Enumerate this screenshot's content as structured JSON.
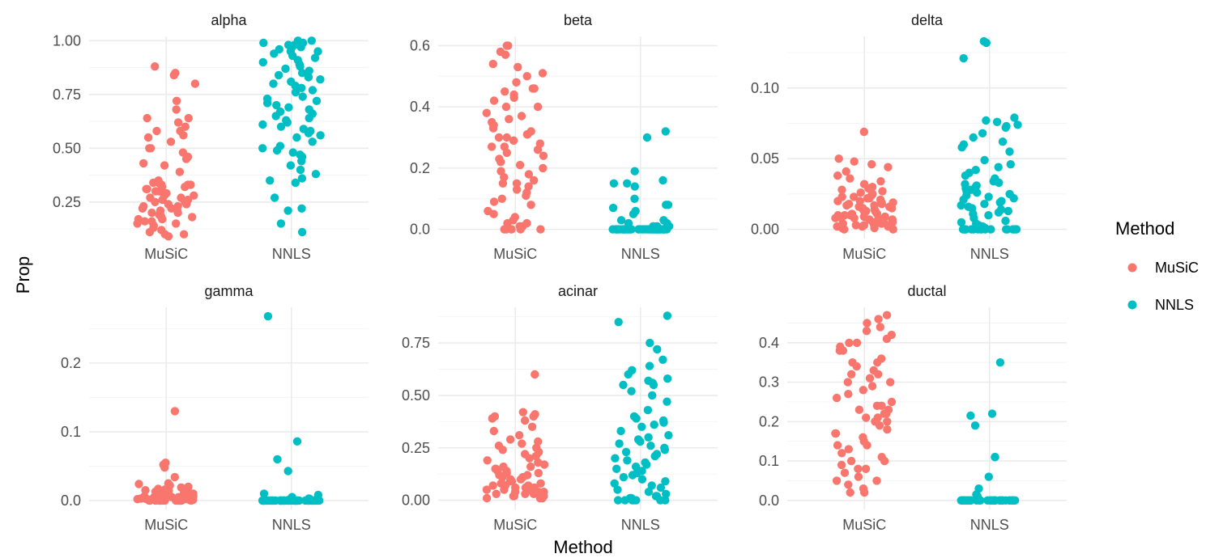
{
  "chart_data": {
    "type": "scatter",
    "style": "faceted jitter strip plot",
    "xlabel": "Method",
    "ylabel": "Prop",
    "categories": [
      "MuSiC",
      "NNLS"
    ],
    "legend": {
      "title": "Method",
      "placement": "right",
      "entries": [
        {
          "name": "MuSiC",
          "color": "#F8766D"
        },
        {
          "name": "NNLS",
          "color": "#00BFC4"
        }
      ]
    },
    "grid": true,
    "facets": [
      {
        "title": "alpha",
        "ylim": [
          0.08,
          1.02
        ],
        "yticks": [
          0.25,
          0.5,
          0.75,
          1.0
        ],
        "ytick_labels": [
          "0.25",
          "0.50",
          "0.75",
          "1.00"
        ],
        "series": [
          {
            "name": "MuSiC",
            "values": [
              0.85,
              0.88,
              0.84,
              0.8,
              0.72,
              0.68,
              0.64,
              0.64,
              0.62,
              0.6,
              0.58,
              0.58,
              0.56,
              0.55,
              0.53,
              0.5,
              0.5,
              0.48,
              0.46,
              0.45,
              0.43,
              0.42,
              0.39,
              0.35,
              0.34,
              0.34,
              0.33,
              0.33,
              0.33,
              0.32,
              0.32,
              0.31,
              0.31,
              0.3,
              0.3,
              0.29,
              0.28,
              0.28,
              0.27,
              0.27,
              0.26,
              0.26,
              0.25,
              0.25,
              0.24,
              0.24,
              0.23,
              0.23,
              0.22,
              0.22,
              0.21,
              0.21,
              0.2,
              0.2,
              0.19,
              0.19,
              0.18,
              0.18,
              0.17,
              0.17,
              0.16,
              0.16,
              0.15,
              0.15,
              0.14,
              0.13,
              0.12,
              0.11,
              0.1,
              0.1,
              0.09
            ]
          },
          {
            "name": "NNLS",
            "values": [
              1.0,
              1.0,
              0.99,
              0.99,
              0.98,
              0.98,
              0.97,
              0.97,
              0.96,
              0.95,
              0.95,
              0.94,
              0.93,
              0.92,
              0.91,
              0.9,
              0.89,
              0.88,
              0.87,
              0.86,
              0.85,
              0.84,
              0.83,
              0.82,
              0.81,
              0.8,
              0.79,
              0.78,
              0.77,
              0.76,
              0.74,
              0.73,
              0.72,
              0.71,
              0.7,
              0.69,
              0.68,
              0.67,
              0.66,
              0.65,
              0.64,
              0.63,
              0.62,
              0.61,
              0.6,
              0.59,
              0.58,
              0.57,
              0.56,
              0.55,
              0.53,
              0.51,
              0.5,
              0.49,
              0.48,
              0.47,
              0.46,
              0.44,
              0.42,
              0.4,
              0.38,
              0.36,
              0.35,
              0.34,
              0.27,
              0.22,
              0.21,
              0.15,
              0.11
            ]
          }
        ]
      },
      {
        "title": "beta",
        "ylim": [
          -0.03,
          0.63
        ],
        "yticks": [
          0.0,
          0.2,
          0.4,
          0.6
        ],
        "ytick_labels": [
          "0.0",
          "0.2",
          "0.4",
          "0.6"
        ],
        "series": [
          {
            "name": "MuSiC",
            "values": [
              0.6,
              0.6,
              0.58,
              0.57,
              0.54,
              0.53,
              0.51,
              0.5,
              0.48,
              0.46,
              0.46,
              0.45,
              0.44,
              0.43,
              0.42,
              0.4,
              0.4,
              0.38,
              0.37,
              0.36,
              0.35,
              0.34,
              0.34,
              0.33,
              0.32,
              0.31,
              0.31,
              0.3,
              0.3,
              0.29,
              0.28,
              0.27,
              0.27,
              0.26,
              0.25,
              0.24,
              0.23,
              0.22,
              0.21,
              0.2,
              0.19,
              0.18,
              0.17,
              0.16,
              0.15,
              0.15,
              0.14,
              0.13,
              0.12,
              0.11,
              0.1,
              0.09,
              0.08,
              0.06,
              0.05,
              0.04,
              0.03,
              0.02,
              0.02,
              0.01,
              0.01,
              0.0,
              0.0,
              0.0,
              0.0,
              0.0,
              0.0
            ]
          },
          {
            "name": "NNLS",
            "values": [
              0.32,
              0.3,
              0.19,
              0.16,
              0.15,
              0.15,
              0.14,
              0.1,
              0.08,
              0.08,
              0.07,
              0.06,
              0.05,
              0.03,
              0.03,
              0.02,
              0.02,
              0.01,
              0.01,
              0.01,
              0.0,
              0.0,
              0.0,
              0.0,
              0.0,
              0.0,
              0.0,
              0.0,
              0.0,
              0.0,
              0.0,
              0.0,
              0.0,
              0.0,
              0.0,
              0.0,
              0.0,
              0.0,
              0.0,
              0.0,
              0.0,
              0.0,
              0.0,
              0.0,
              0.0,
              0.0,
              0.0,
              0.0,
              0.0,
              0.0,
              0.0,
              0.0,
              0.0,
              0.0,
              0.0,
              0.0,
              0.0,
              0.0,
              0.0,
              0.0
            ]
          }
        ]
      },
      {
        "title": "delta",
        "ylim": [
          -0.0065,
          0.1365
        ],
        "yticks": [
          0.0,
          0.05,
          0.1
        ],
        "ytick_labels": [
          "0.00",
          "0.05",
          "0.10"
        ],
        "series": [
          {
            "name": "MuSiC",
            "values": [
              0.069,
              0.05,
              0.048,
              0.046,
              0.044,
              0.041,
              0.038,
              0.036,
              0.034,
              0.032,
              0.03,
              0.029,
              0.028,
              0.027,
              0.026,
              0.025,
              0.024,
              0.023,
              0.023,
              0.022,
              0.022,
              0.021,
              0.02,
              0.02,
              0.019,
              0.019,
              0.018,
              0.018,
              0.017,
              0.017,
              0.016,
              0.016,
              0.015,
              0.015,
              0.014,
              0.014,
              0.013,
              0.013,
              0.012,
              0.012,
              0.011,
              0.011,
              0.01,
              0.01,
              0.01,
              0.009,
              0.009,
              0.008,
              0.008,
              0.008,
              0.007,
              0.007,
              0.007,
              0.006,
              0.006,
              0.006,
              0.005,
              0.005,
              0.005,
              0.004,
              0.004,
              0.004,
              0.003,
              0.003,
              0.003,
              0.002,
              0.002,
              0.002,
              0.001,
              0.001,
              0.0,
              0.0
            ]
          },
          {
            "name": "NNLS",
            "values": [
              0.133,
              0.132,
              0.121,
              0.079,
              0.077,
              0.076,
              0.074,
              0.073,
              0.072,
              0.068,
              0.065,
              0.062,
              0.06,
              0.058,
              0.055,
              0.049,
              0.046,
              0.044,
              0.042,
              0.04,
              0.038,
              0.036,
              0.034,
              0.033,
              0.032,
              0.031,
              0.03,
              0.029,
              0.028,
              0.027,
              0.026,
              0.025,
              0.024,
              0.023,
              0.022,
              0.021,
              0.02,
              0.019,
              0.018,
              0.017,
              0.016,
              0.015,
              0.014,
              0.013,
              0.012,
              0.011,
              0.01,
              0.008,
              0.006,
              0.005,
              0.004,
              0.003,
              0.002,
              0.001,
              0.0,
              0.0,
              0.0,
              0.0,
              0.0,
              0.0,
              0.0,
              0.0,
              0.0,
              0.0,
              0.0,
              0.0,
              0.0,
              0.0,
              0.0,
              0.0,
              0.0,
              0.0
            ]
          }
        ]
      },
      {
        "title": "gamma",
        "ylim": [
          -0.013,
          0.281
        ],
        "yticks": [
          0.0,
          0.1,
          0.2
        ],
        "ytick_labels": [
          "0.0",
          "0.1",
          "0.2"
        ],
        "series": [
          {
            "name": "MuSiC",
            "values": [
              0.13,
              0.055,
              0.052,
              0.048,
              0.034,
              0.025,
              0.024,
              0.022,
              0.02,
              0.019,
              0.018,
              0.017,
              0.016,
              0.015,
              0.014,
              0.013,
              0.012,
              0.012,
              0.011,
              0.011,
              0.01,
              0.01,
              0.009,
              0.009,
              0.008,
              0.008,
              0.007,
              0.007,
              0.006,
              0.006,
              0.006,
              0.005,
              0.005,
              0.005,
              0.004,
              0.004,
              0.004,
              0.003,
              0.003,
              0.003,
              0.002,
              0.002,
              0.002,
              0.002,
              0.001,
              0.001,
              0.001,
              0.001,
              0.0,
              0.0,
              0.0,
              0.0,
              0.0,
              0.0,
              0.0,
              0.0,
              0.0,
              0.0,
              0.0,
              0.0,
              0.0,
              0.0
            ]
          },
          {
            "name": "NNLS",
            "values": [
              0.268,
              0.086,
              0.06,
              0.043,
              0.01,
              0.008,
              0.005,
              0.003,
              0.002,
              0.001,
              0.0,
              0.0,
              0.0,
              0.0,
              0.0,
              0.0,
              0.0,
              0.0,
              0.0,
              0.0,
              0.0,
              0.0,
              0.0,
              0.0,
              0.0,
              0.0,
              0.0,
              0.0,
              0.0,
              0.0,
              0.0,
              0.0,
              0.0,
              0.0,
              0.0,
              0.0,
              0.0,
              0.0,
              0.0,
              0.0,
              0.0,
              0.0,
              0.0,
              0.0,
              0.0,
              0.0,
              0.0,
              0.0,
              0.0,
              0.0,
              0.0,
              0.0,
              0.0,
              0.0,
              0.0,
              0.0,
              0.0,
              0.0,
              0.0,
              0.0
            ]
          }
        ]
      },
      {
        "title": "acinar",
        "ylim": [
          -0.044,
          0.92
        ],
        "yticks": [
          0.0,
          0.25,
          0.5,
          0.75
        ],
        "ytick_labels": [
          "0.00",
          "0.25",
          "0.50",
          "0.75"
        ],
        "series": [
          {
            "name": "MuSiC",
            "values": [
              0.6,
              0.42,
              0.41,
              0.4,
              0.4,
              0.39,
              0.38,
              0.35,
              0.33,
              0.31,
              0.29,
              0.28,
              0.27,
              0.26,
              0.25,
              0.24,
              0.23,
              0.22,
              0.21,
              0.2,
              0.19,
              0.18,
              0.17,
              0.16,
              0.16,
              0.15,
              0.15,
              0.14,
              0.14,
              0.13,
              0.13,
              0.12,
              0.12,
              0.11,
              0.11,
              0.1,
              0.1,
              0.09,
              0.09,
              0.08,
              0.08,
              0.08,
              0.07,
              0.07,
              0.07,
              0.06,
              0.06,
              0.06,
              0.05,
              0.05,
              0.05,
              0.04,
              0.04,
              0.04,
              0.03,
              0.03,
              0.03,
              0.02,
              0.02,
              0.02,
              0.01,
              0.01,
              0.01
            ]
          },
          {
            "name": "NNLS",
            "values": [
              0.88,
              0.85,
              0.75,
              0.72,
              0.67,
              0.64,
              0.62,
              0.6,
              0.58,
              0.57,
              0.56,
              0.55,
              0.55,
              0.52,
              0.5,
              0.47,
              0.43,
              0.4,
              0.39,
              0.38,
              0.37,
              0.36,
              0.35,
              0.33,
              0.31,
              0.3,
              0.29,
              0.28,
              0.27,
              0.26,
              0.25,
              0.24,
              0.23,
              0.22,
              0.21,
              0.2,
              0.19,
              0.18,
              0.17,
              0.16,
              0.15,
              0.14,
              0.13,
              0.12,
              0.11,
              0.1,
              0.09,
              0.08,
              0.07,
              0.06,
              0.05,
              0.04,
              0.03,
              0.02,
              0.02,
              0.01,
              0.01,
              0.0,
              0.0,
              0.0,
              0.0,
              0.0,
              0.0,
              0.0
            ]
          }
        ]
      },
      {
        "title": "ductal",
        "ylim": [
          -0.023,
          0.49
        ],
        "yticks": [
          0.0,
          0.1,
          0.2,
          0.3,
          0.4
        ],
        "ytick_labels": [
          "0.0",
          "0.1",
          "0.2",
          "0.3",
          "0.4"
        ],
        "series": [
          {
            "name": "MuSiC",
            "values": [
              0.47,
              0.46,
              0.45,
              0.44,
              0.43,
              0.42,
              0.41,
              0.4,
              0.4,
              0.39,
              0.38,
              0.38,
              0.36,
              0.35,
              0.35,
              0.34,
              0.33,
              0.32,
              0.32,
              0.31,
              0.3,
              0.3,
              0.29,
              0.28,
              0.27,
              0.26,
              0.25,
              0.24,
              0.24,
              0.23,
              0.23,
              0.22,
              0.22,
              0.21,
              0.21,
              0.2,
              0.2,
              0.19,
              0.18,
              0.17,
              0.17,
              0.16,
              0.15,
              0.14,
              0.14,
              0.13,
              0.12,
              0.11,
              0.1,
              0.1,
              0.09,
              0.08,
              0.08,
              0.07,
              0.06,
              0.05,
              0.05,
              0.04,
              0.03,
              0.02,
              0.02
            ]
          },
          {
            "name": "NNLS",
            "values": [
              0.35,
              0.22,
              0.215,
              0.19,
              0.11,
              0.11,
              0.06,
              0.03,
              0.015,
              0.01,
              0.0,
              0.0,
              0.0,
              0.0,
              0.0,
              0.0,
              0.0,
              0.0,
              0.0,
              0.0,
              0.0,
              0.0,
              0.0,
              0.0,
              0.0,
              0.0,
              0.0,
              0.0,
              0.0,
              0.0,
              0.0,
              0.0,
              0.0,
              0.0,
              0.0,
              0.0,
              0.0,
              0.0,
              0.0,
              0.0,
              0.0,
              0.0,
              0.0,
              0.0,
              0.0,
              0.0,
              0.0,
              0.0,
              0.0,
              0.0
            ]
          }
        ]
      }
    ]
  }
}
